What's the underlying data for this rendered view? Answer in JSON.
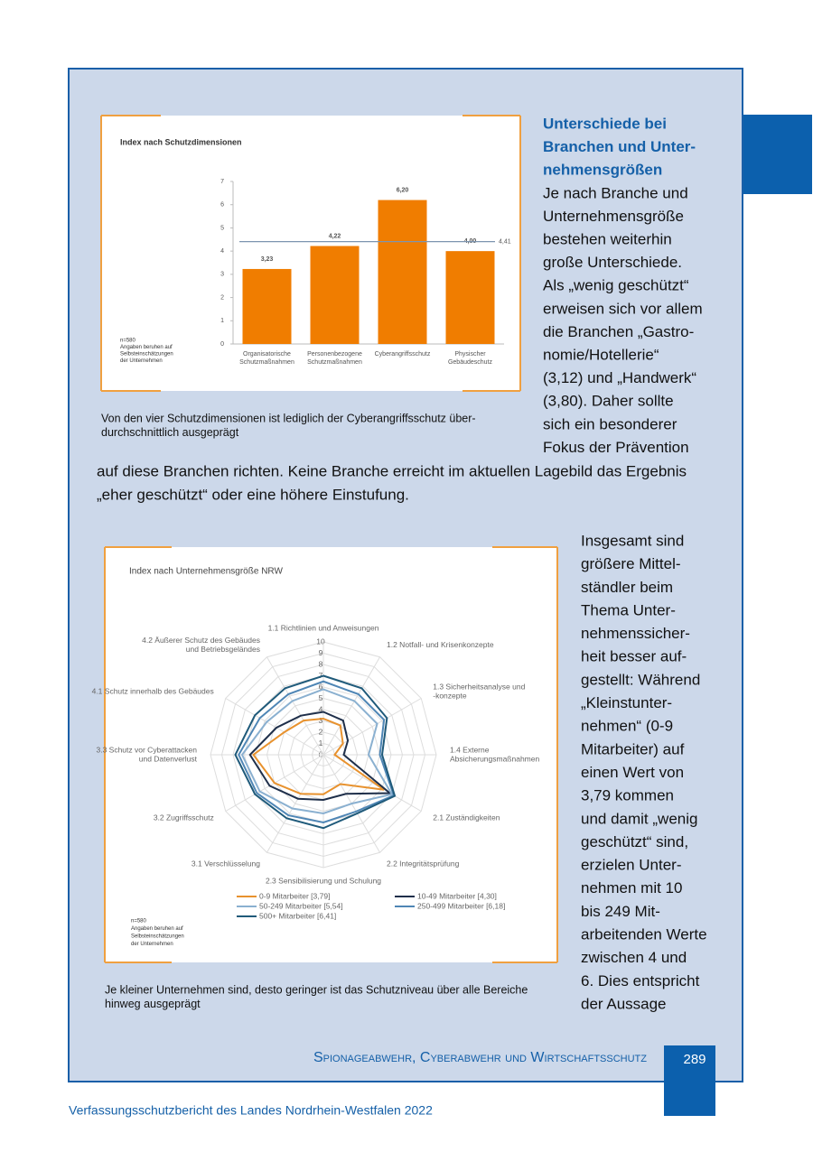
{
  "column1": {
    "heading_lines": [
      "Unterschiede bei",
      "Branchen und Unter-",
      "nehmensgrößen"
    ],
    "body_lines": [
      "Je nach Branche und",
      "Unternehmensgröße",
      "bestehen weiterhin",
      "große Unterschiede.",
      "Als „wenig geschützt“",
      "erweisen sich vor allem",
      "die Branchen „Gastro-",
      "nomie/Hotellerie“",
      "(3,12) und „Handwerk“",
      "(3,80). Daher sollte",
      "sich ein besonderer",
      "Fokus der Prävention"
    ]
  },
  "full_width_lines": [
    "auf diese Branchen richten. Keine Branche erreicht im aktuellen Lagebild das Ergebnis",
    "„eher geschützt“ oder eine höhere Einstufung."
  ],
  "figure1": {
    "caption_lines": [
      "Von den vier Schutzdimensionen ist lediglich der Cyberangriffsschutz über-",
      "durchschnittlich ausgeprägt"
    ]
  },
  "column2": {
    "lines": [
      "Insgesamt sind",
      "größere Mittel-",
      "ständler beim",
      "Thema Unter-",
      "nehmenssicher-",
      "heit besser auf-",
      "gestellt: Während",
      "„Kleinstunter-",
      "nehmen“ (0-9",
      "Mitarbeiter) auf",
      "einen Wert von",
      "3,79 kommen",
      "und damit „wenig",
      "geschützt“ sind,",
      "erzielen Unter-",
      "nehmen mit 10",
      "bis 249 Mit-",
      "arbeitenden Werte",
      "zwischen 4 und",
      "6. Dies entspricht",
      "der Aussage"
    ]
  },
  "figure2": {
    "caption_lines": [
      "Je kleiner Unternehmen sind, desto geringer ist das Schutzniveau über alle Bereiche",
      "hinweg ausgeprägt"
    ]
  },
  "footer": {
    "section": "Spionageabwehr, Cyberabwehr und Wirtschaftsschutz",
    "page_number": 289,
    "publication": "Verfassungsschutzbericht des Landes Nordrhein-Westfalen 2022"
  },
  "chart_data": [
    {
      "type": "bar",
      "title": "Index nach Schutzdimensionen",
      "categories": [
        [
          "Organisatorische",
          "Schutzmaßnahmen"
        ],
        [
          "Personenbezogene",
          "Schutzmaßnahmen"
        ],
        [
          "Cyberangriffsschutz"
        ],
        [
          "Physischer",
          "Gebäudeschutz"
        ]
      ],
      "values": [
        3.23,
        4.22,
        6.2,
        4.0
      ],
      "value_labels": [
        "3,23",
        "4,22",
        "6,20",
        "4,00"
      ],
      "color": "#f07d00",
      "ylim": [
        0,
        7
      ],
      "yticks": [
        0,
        1,
        2,
        3,
        4,
        5,
        6,
        7
      ],
      "reference_line": {
        "value": 4.41,
        "label": "4,41"
      },
      "note_lines": [
        "n=580",
        "Angaben beruhen auf",
        "Selbsteinschätzungen",
        "der Unternehmen"
      ]
    },
    {
      "type": "radar",
      "title": "Index nach Unternehmensgröße NRW",
      "axes": [
        [
          "1.1 Richtlinien und Anweisungen"
        ],
        [
          "1.2 Notfall- und Krisenkonzepte"
        ],
        [
          "1.3 Sicherheitsanalyse und",
          "-konzepte"
        ],
        [
          "1.4 Externe",
          "Absicherungsmaßnahmen"
        ],
        [
          "2.1 Zuständigkeiten"
        ],
        [
          "2.2 Integritätsprüfung"
        ],
        [
          "2.3 Sensibilisierung und Schulung"
        ],
        [
          "3.1 Verschlüsselung"
        ],
        [
          "3.2 Zugriffsschutz"
        ],
        [
          "3.3 Schutz vor Cyberattacken",
          "und Datenverlust"
        ],
        [
          "4.1 Schutz innerhalb des Gebäudes"
        ],
        [
          "4.2 Äußerer Schutz des Gebäudes",
          "und Betriebsgeländes"
        ]
      ],
      "rlim": [
        0,
        10
      ],
      "rticks": [
        0,
        1,
        2,
        3,
        4,
        5,
        6,
        7,
        8,
        9,
        10
      ],
      "grid": true,
      "series": [
        {
          "name": "0-9 Mitarbeiter [3,79]",
          "color": "#e8922e",
          "values": [
            3.2,
            3.0,
            2.0,
            1.0,
            6.2,
            3.0,
            3.5,
            4.0,
            5.0,
            6.2,
            4.0,
            3.5
          ]
        },
        {
          "name": "10-49 Mitarbeiter [4,30]",
          "color": "#1f2f4a",
          "values": [
            3.8,
            3.5,
            2.5,
            1.8,
            6.8,
            4.0,
            4.0,
            4.5,
            5.5,
            6.5,
            4.8,
            4.0
          ]
        },
        {
          "name": "50-249 Mitarbeiter [5,54]",
          "color": "#8ab0d0",
          "values": [
            5.8,
            5.5,
            5.5,
            4.0,
            7.0,
            5.0,
            5.2,
            5.5,
            6.5,
            7.2,
            5.8,
            5.5
          ]
        },
        {
          "name": "250-499 Mitarbeiter [6,18]",
          "color": "#4f86b5",
          "values": [
            6.5,
            6.2,
            6.2,
            5.0,
            7.2,
            5.8,
            6.0,
            6.2,
            6.8,
            7.5,
            6.5,
            6.2
          ]
        },
        {
          "name": "500+ Mitarbeiter [6,41]",
          "color": "#1f5a7a",
          "values": [
            7.0,
            6.8,
            6.5,
            5.2,
            7.3,
            6.0,
            6.5,
            6.5,
            7.0,
            7.8,
            7.0,
            6.8
          ]
        }
      ],
      "note_lines": [
        "n=580",
        "Angaben beruhen auf",
        "Selbsteinschätzungen",
        "der Unternehmen"
      ]
    }
  ]
}
